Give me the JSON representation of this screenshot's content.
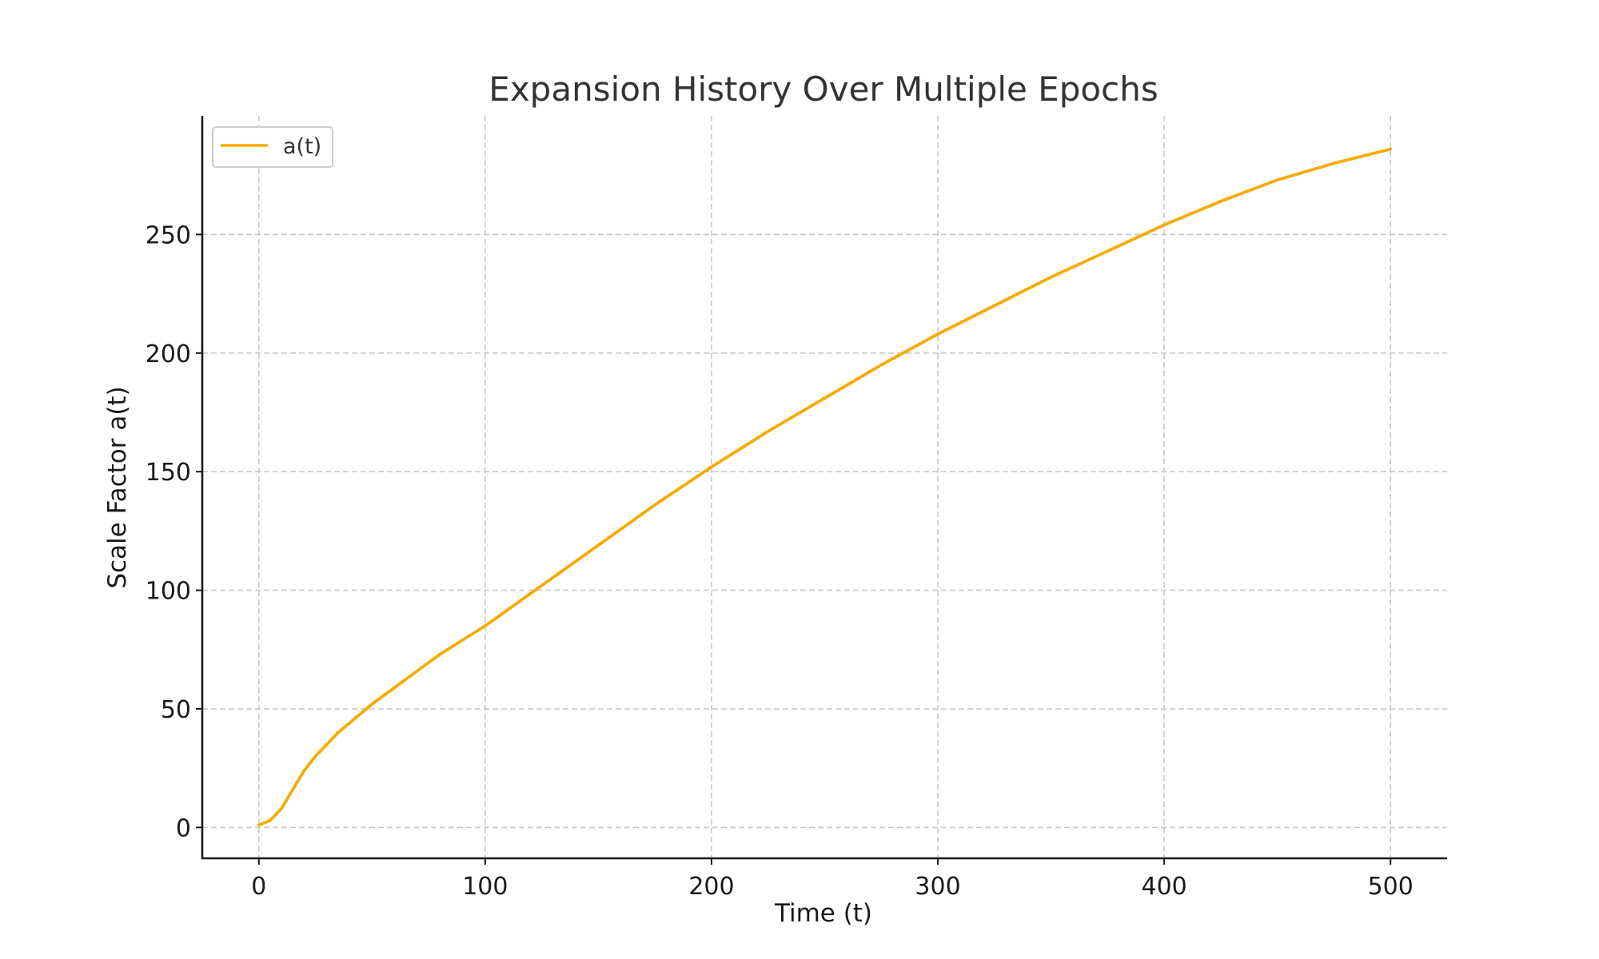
{
  "chart_data": {
    "type": "line",
    "title": "Expansion History Over Multiple Epochs",
    "xlabel": "Time (t)",
    "ylabel": "Scale Factor a(t)",
    "xlim": [
      -25,
      525
    ],
    "ylim": [
      -13,
      300
    ],
    "xticks": [
      0,
      100,
      200,
      300,
      400,
      500
    ],
    "yticks": [
      0,
      50,
      100,
      150,
      200,
      250
    ],
    "grid": true,
    "legend_position": "top-left",
    "series": [
      {
        "name": "a(t)",
        "color": "#f5ab00",
        "x": [
          0,
          5,
          10,
          15,
          20,
          25,
          30,
          35,
          40,
          45,
          50,
          60,
          70,
          80,
          90,
          100,
          125,
          150,
          175,
          200,
          225,
          250,
          275,
          300,
          325,
          350,
          375,
          400,
          425,
          450,
          475,
          500
        ],
        "y": [
          1,
          3,
          8,
          16,
          24,
          30,
          35,
          40,
          44,
          48,
          52,
          59,
          66,
          73,
          79,
          85,
          102,
          119,
          136,
          152,
          167,
          181,
          195,
          208,
          220,
          232,
          243,
          254,
          264,
          273,
          280,
          286
        ]
      }
    ]
  }
}
